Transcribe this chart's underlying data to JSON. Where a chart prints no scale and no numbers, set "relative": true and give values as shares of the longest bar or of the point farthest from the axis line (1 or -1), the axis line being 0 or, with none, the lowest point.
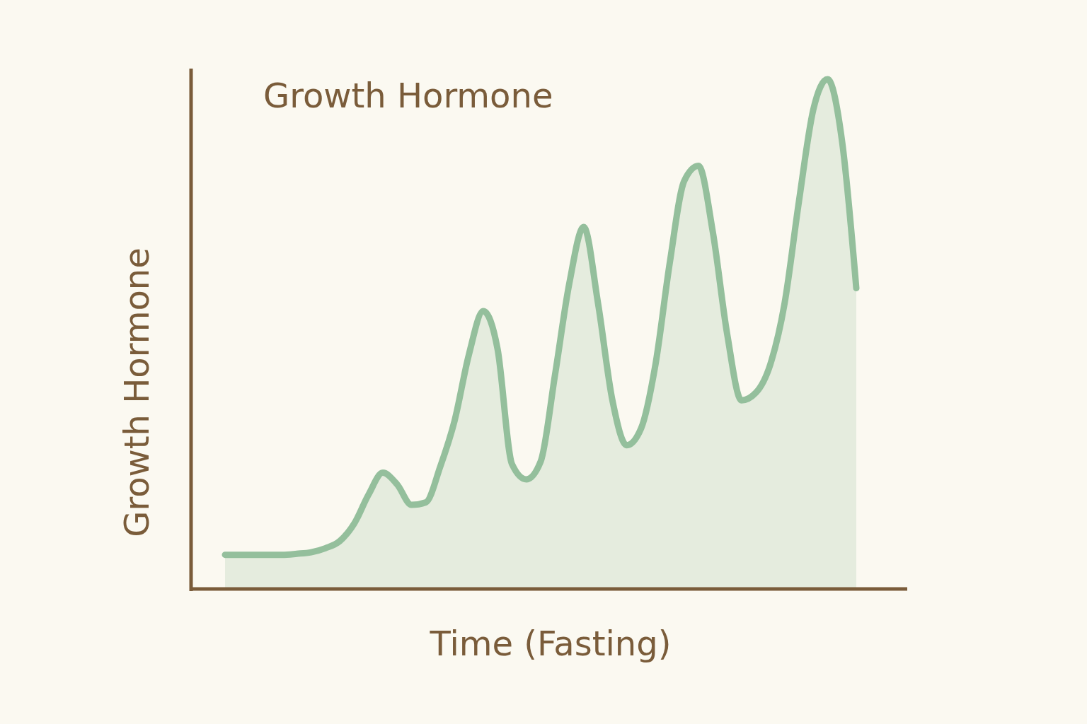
{
  "chart_data": {
    "type": "area",
    "title": "Growth Hormone",
    "xlabel": "Time (Fasting)",
    "ylabel": "Growth Hormone",
    "relative": true,
    "categories": [
      null,
      null,
      null,
      null,
      null,
      null,
      null,
      null,
      null,
      null,
      null,
      null,
      null,
      null,
      null,
      null,
      null,
      null,
      null,
      null,
      null,
      null,
      null,
      null,
      null,
      null,
      null,
      null,
      null,
      null,
      null,
      null,
      null,
      null,
      null,
      null,
      null,
      null,
      null,
      null,
      null,
      null,
      null,
      null,
      null
    ],
    "series": [
      {
        "color": "#94bf9c",
        "values": [
          0.067,
          0.067,
          0.067,
          0.067,
          0.067,
          0.069,
          0.072,
          0.08,
          0.094,
          0.128,
          0.185,
          0.228,
          0.205,
          0.165,
          0.17,
          0.24,
          0.33,
          0.46,
          0.545,
          0.47,
          0.245,
          0.215,
          0.25,
          0.42,
          0.6,
          0.71,
          0.56,
          0.37,
          0.282,
          0.315,
          0.44,
          0.64,
          0.8,
          0.83,
          0.7,
          0.5,
          0.37,
          0.385,
          0.44,
          0.56,
          0.76,
          0.94,
          1,
          0.88,
          0.59
        ]
      }
    ]
  }
}
